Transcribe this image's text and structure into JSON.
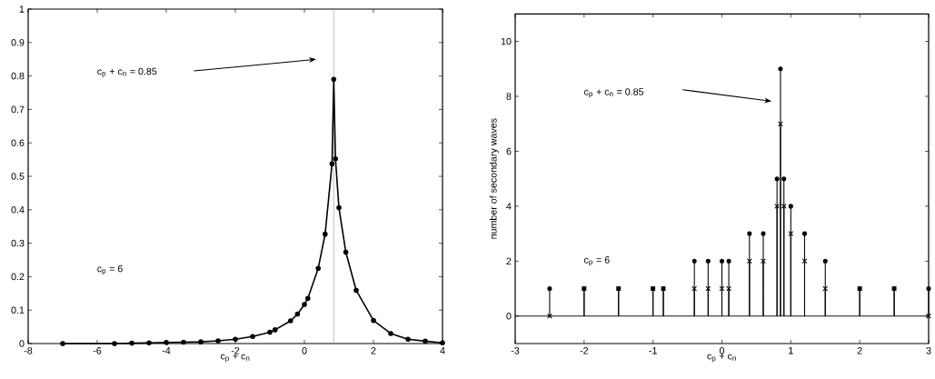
{
  "chart_data": [
    {
      "type": "line",
      "xlabel": "c$_{p}$ + c$_{n}$",
      "x": [
        -7,
        -5.5,
        -5,
        -4.5,
        -4,
        -3.5,
        -3,
        -2.5,
        -2,
        -1.5,
        -1,
        -0.85,
        -0.4,
        -0.2,
        0,
        0.1,
        0.4,
        0.6,
        0.8,
        0.85,
        0.9,
        1,
        1.2,
        1.5,
        2,
        2.5,
        3,
        3.5,
        4
      ],
      "series": [
        {
          "color": "#000000",
          "values": [
            0.0,
            0.0,
            0.001,
            0.002,
            0.003,
            0.004,
            0.005,
            0.008,
            0.013,
            0.021,
            0.034,
            0.041,
            0.068,
            0.088,
            0.117,
            0.135,
            0.225,
            0.327,
            0.537,
            0.79,
            0.552,
            0.406,
            0.273,
            0.159,
            0.069,
            0.03,
            0.013,
            0.007,
            0.002
          ]
        }
      ],
      "marker": "circle",
      "line_style": "solid",
      "xlim": [
        -8,
        4
      ],
      "xticks": [
        -8,
        -6,
        -4,
        -2,
        0,
        2,
        4
      ],
      "ylim": [
        0,
        1
      ],
      "yticks": [
        0,
        0.1,
        0.2,
        0.3,
        0.4,
        0.5,
        0.6,
        0.7,
        0.8,
        0.9,
        1
      ],
      "ref_lines": [
        {
          "axis": "x",
          "value": 0.85,
          "color": "#a0a0a0"
        }
      ],
      "annotations": [
        "c$_{p}$ + c$_{n}$ = 0.85",
        "c$_{p}$ = 6"
      ]
    },
    {
      "type": "lollipop",
      "xlabel": "c$_{p}$ + c$_{n}$",
      "ylabel": "number of secondary waves",
      "x": [
        -2.5,
        -2,
        -1.5,
        -1,
        -0.85,
        -0.4,
        -0.2,
        0,
        0.1,
        0.4,
        0.6,
        0.8,
        0.85,
        0.9,
        1,
        1.2,
        1.5,
        2,
        2.5,
        3
      ],
      "series": [
        {
          "color": "#000000",
          "marker": "circle",
          "values": [
            1,
            1,
            1,
            1,
            1,
            2,
            2,
            2,
            2,
            3,
            3,
            5,
            9,
            5,
            4,
            3,
            2,
            1,
            1,
            1
          ]
        },
        {
          "color": "#000000",
          "marker": "cross",
          "values": [
            0,
            1,
            1,
            1,
            1,
            1,
            1,
            1,
            1,
            2,
            2,
            4,
            7,
            4,
            3,
            2,
            1,
            1,
            1,
            0
          ]
        }
      ],
      "xlim": [
        -3,
        3
      ],
      "xticks": [
        -3,
        -2,
        -1,
        0,
        1,
        2,
        3
      ],
      "ylim": [
        -1,
        11
      ],
      "yticks": [
        0,
        2,
        4,
        6,
        8,
        10
      ],
      "ref_lines": [
        {
          "axis": "y",
          "value": 0,
          "color": "#000000"
        }
      ],
      "annotations": [
        "c$_{p}$ + c$_{n}$ = 0.85",
        "c$_{p}$ = 6"
      ]
    }
  ]
}
